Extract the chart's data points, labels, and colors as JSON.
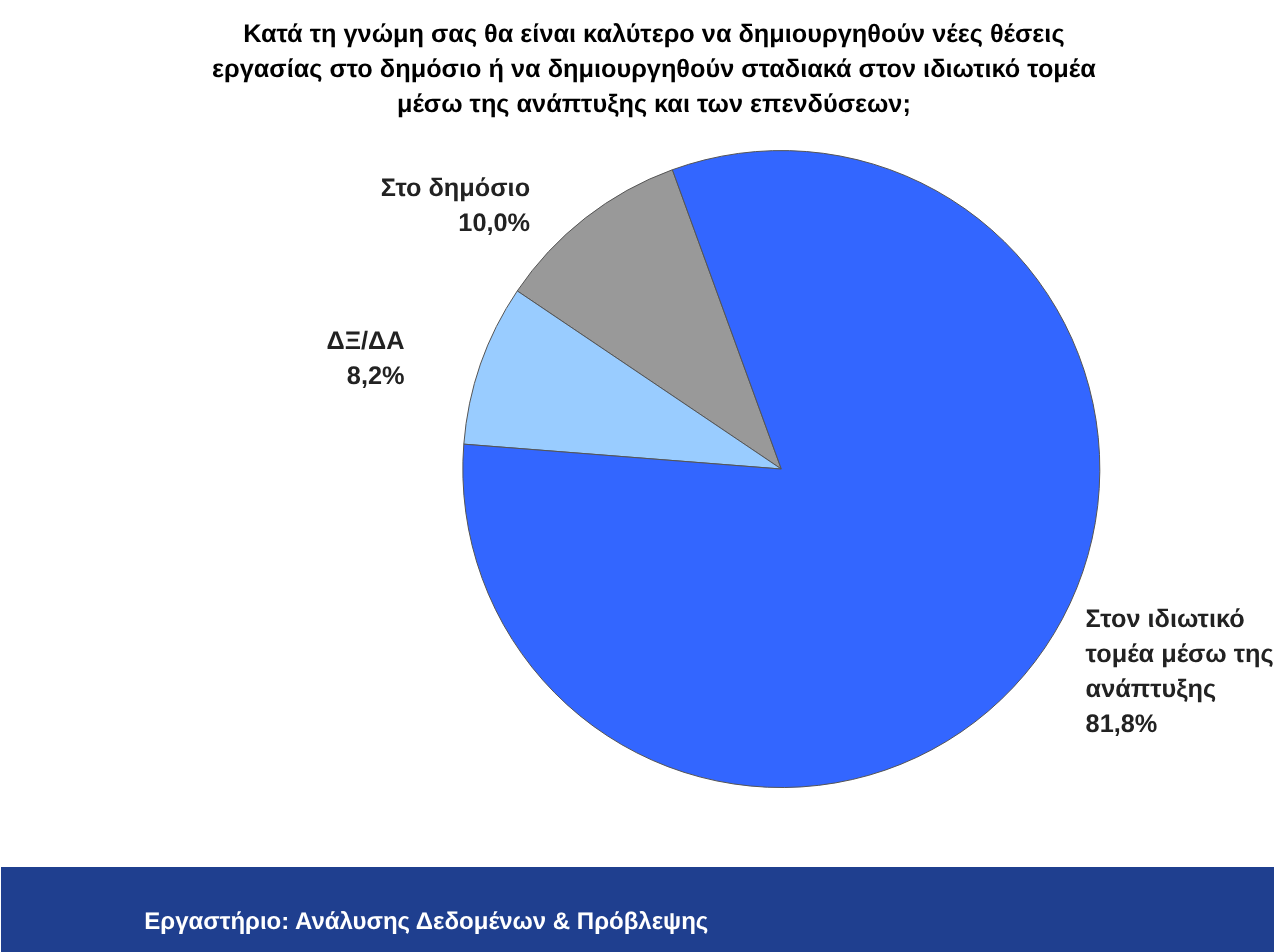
{
  "chart_data": {
    "type": "pie",
    "title": "Κατά τη γνώμη σας θα είναι καλύτερο να δημιουργηθούν νέες θέσεις\nεργασίας στο δημόσιο ή να δημιουργηθούν σταδιακά στον ιδιωτικό τομέα\nμέσω της ανάπτυξης και των επενδύσεων;",
    "categories": [
      "Στο δημόσιο",
      "ΔΞ/ΔΑ",
      "Στον ιδιωτικό\nτομέα μέσω της\nανάπτυξης"
    ],
    "values": [
      10.0,
      8.2,
      81.8
    ],
    "colors": [
      "#999999",
      "#99ccff",
      "#3366ff"
    ],
    "value_labels": [
      "10,0%",
      "8,2%",
      "81,8%"
    ],
    "annotations": [
      "Εργαστήριο: Ανάλυσης Δεδομένων & Πρόβλεψης"
    ]
  }
}
